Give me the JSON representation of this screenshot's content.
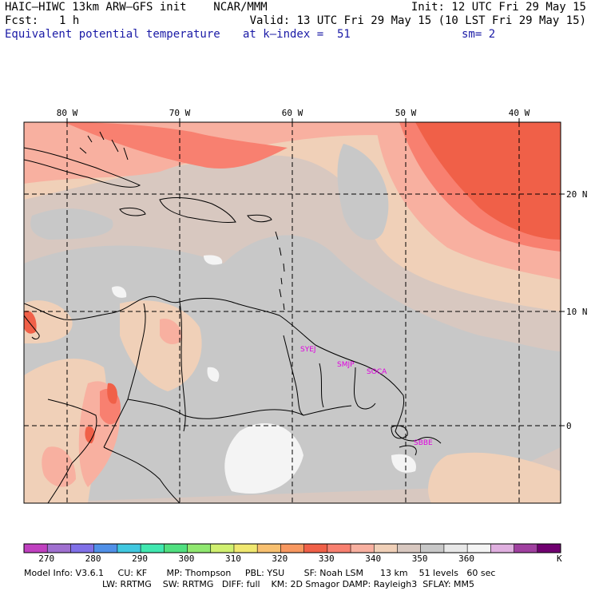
{
  "header": {
    "model_line": "HAIC–HIWC 13km ARW–GFS init    NCAR/MMM",
    "init_line": "Init: 12 UTC Fri 29 May 15",
    "fcst_label": "Fcst:",
    "fcst_value": "1 h",
    "valid_line": "Valid: 13 UTC Fri 29 May 15 (10 LST Fri 29 May 15)",
    "field_name": "Equivalent potential temperature",
    "k_index": "at k–index =  51",
    "smoothing": "sm= 2"
  },
  "map": {
    "lon_labels": [
      "80 W",
      "70 W",
      "60 W",
      "50 W",
      "40 W"
    ],
    "lat_labels": [
      "20 N",
      "10 N",
      "0"
    ],
    "station_labels": [
      "SYEJ",
      "SMJP",
      "SOCA",
      "SBBE"
    ],
    "colors": {
      "border": "#000000",
      "grid": "#000000",
      "station_text": "#e000e0"
    }
  },
  "colorbar": {
    "colors": [
      "#c040c0",
      "#a070d0",
      "#8070e8",
      "#5090e8",
      "#40c8e0",
      "#40e8b0",
      "#50e080",
      "#90e870",
      "#d0f070",
      "#f0e870",
      "#f8c070",
      "#f89860",
      "#f06048",
      "#f88070",
      "#f8b0a0",
      "#f0d0b8",
      "#d8c8c0",
      "#c8c8c8",
      "#e8e8e8",
      "#f4f4f4",
      "#e0b0e0",
      "#a040a0",
      "#700070"
    ],
    "labels": [
      "270",
      "280",
      "290",
      "300",
      "310",
      "320",
      "330",
      "340",
      "350",
      "360"
    ],
    "unit": "K"
  },
  "model_info": {
    "line1": "Model Info: V3.6.1     CU: KF       MP: Thompson     PBL: YSU       SF: Noah LSM      13 km    51 levels   60 sec",
    "line2": "LW: RRTMG    SW: RRTMG   DIFF: full    KM: 2D Smagor DAMP: Rayleigh3  SFLAY: MM5"
  }
}
